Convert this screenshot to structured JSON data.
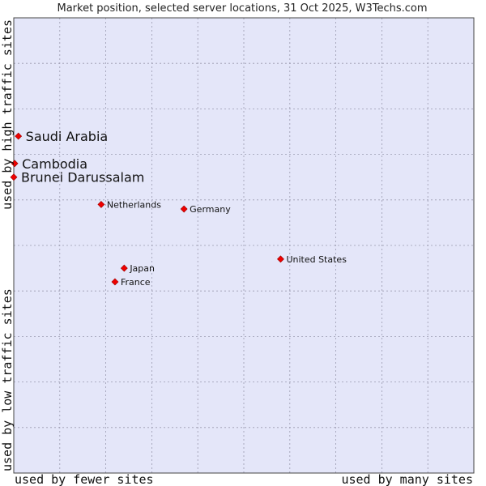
{
  "chart_data": {
    "type": "scatter",
    "title": "Market position, selected server locations, 31 Oct 2025, W3Techs.com",
    "xlabel_left": "used by fewer sites",
    "xlabel_right": "used by many sites",
    "ylabel_top": "used by high traffic sites",
    "ylabel_bottom": "used by low traffic sites",
    "xlim": [
      0,
      10
    ],
    "ylim": [
      0,
      10
    ],
    "grid": true,
    "colors": {
      "plot_bg": "#e4e6f9",
      "grid": "#9a9aaf",
      "point": "#ee0000",
      "border": "#444444"
    },
    "points": [
      {
        "label": "Saudi Arabia",
        "x": 0.1,
        "y": 7.4,
        "emphasis": true
      },
      {
        "label": "Cambodia",
        "x": 0.02,
        "y": 6.8,
        "emphasis": true
      },
      {
        "label": "Brunei Darussalam",
        "x": 0.0,
        "y": 6.5,
        "emphasis": true
      },
      {
        "label": "Netherlands",
        "x": 1.9,
        "y": 5.9,
        "emphasis": false
      },
      {
        "label": "Germany",
        "x": 3.7,
        "y": 5.8,
        "emphasis": false
      },
      {
        "label": "United States",
        "x": 5.8,
        "y": 4.7,
        "emphasis": false
      },
      {
        "label": "Japan",
        "x": 2.4,
        "y": 4.5,
        "emphasis": false
      },
      {
        "label": "France",
        "x": 2.2,
        "y": 4.2,
        "emphasis": false
      }
    ]
  }
}
